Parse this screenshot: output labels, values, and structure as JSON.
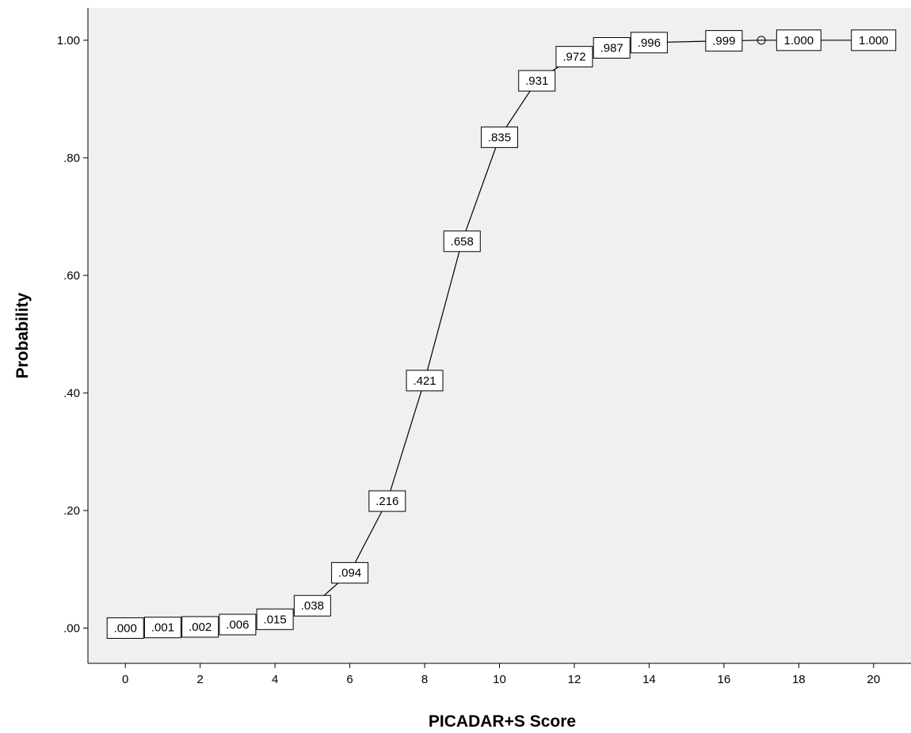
{
  "chart_data": {
    "type": "line",
    "title": "",
    "xlabel": "PICADAR+S Score",
    "ylabel": "Probability",
    "xlim": [
      -1,
      21
    ],
    "ylim": [
      -0.06,
      1.055
    ],
    "grid": false,
    "x_ticks": [
      0,
      2,
      4,
      6,
      8,
      10,
      12,
      14,
      16,
      18,
      20
    ],
    "x_tick_labels": [
      "0",
      "2",
      "4",
      "6",
      "8",
      "10",
      "12",
      "14",
      "16",
      "18",
      "20"
    ],
    "y_ticks": [
      0,
      0.2,
      0.4,
      0.6,
      0.8,
      1.0
    ],
    "y_tick_labels": [
      ".00",
      ".20",
      ".40",
      ".60",
      ".80",
      "1.00"
    ],
    "series": [
      {
        "x": [
          0,
          1,
          2,
          3,
          4,
          5,
          6,
          7,
          8,
          9,
          10,
          11,
          12,
          13,
          14,
          16,
          17,
          18,
          20
        ],
        "y": [
          0.0,
          0.001,
          0.002,
          0.006,
          0.015,
          0.038,
          0.094,
          0.216,
          0.421,
          0.658,
          0.835,
          0.931,
          0.972,
          0.987,
          0.996,
          0.999,
          1.0,
          1.0,
          1.0
        ],
        "labels": [
          ".000",
          ".001",
          ".002",
          ".006",
          ".015",
          ".038",
          ".094",
          ".216",
          ".421",
          ".658",
          ".835",
          ".931",
          ".972",
          ".987",
          ".996",
          ".999",
          "",
          "1.000",
          "1.000"
        ]
      }
    ],
    "colors": {
      "plot_background": "#f0f0f0",
      "line": "#000000",
      "label_box_fill": "#ffffff",
      "label_box_stroke": "#000000",
      "marker": "#000000"
    }
  }
}
